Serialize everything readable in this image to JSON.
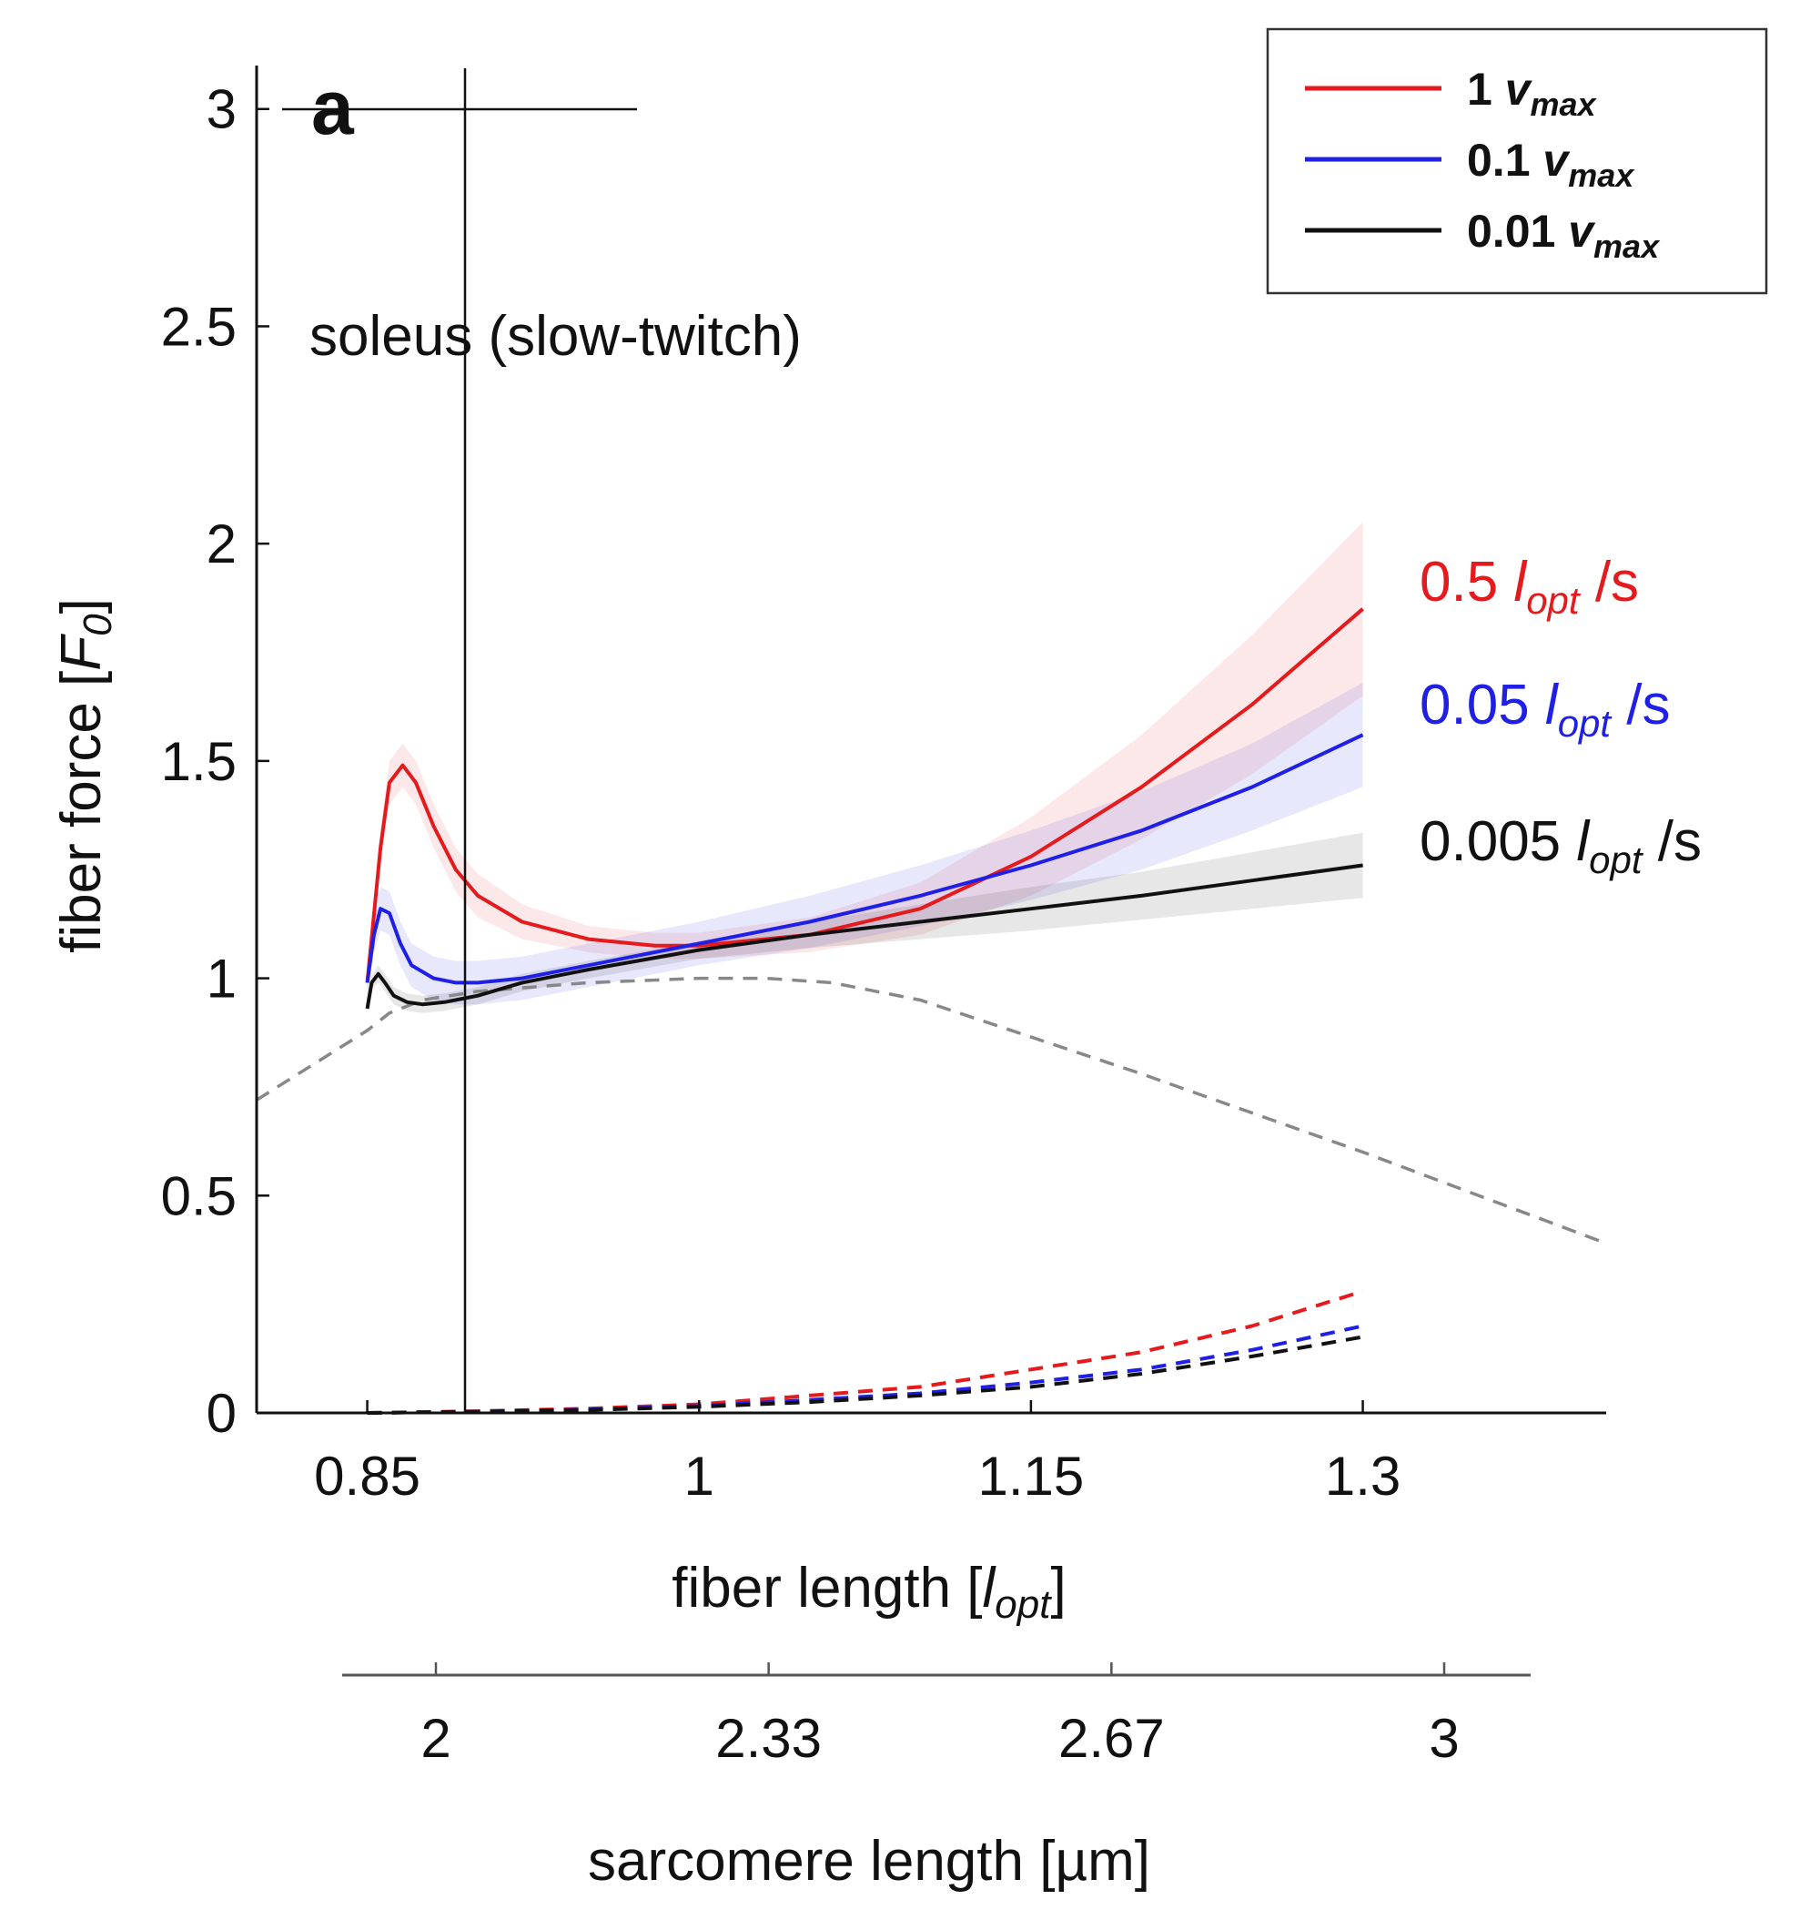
{
  "chart_data": {
    "type": "line",
    "panel_label": "a",
    "subtitle": "soleus (slow-twitch)",
    "xlabel": {
      "main": "fiber length [",
      "italic": "l",
      "sub": "opt",
      "end": "]"
    },
    "ylabel": {
      "main": "fiber force [",
      "italic": "F",
      "sub": "0",
      "end": "]"
    },
    "x_secondary_label": "sarcomere length [µm]",
    "xlim": [
      0.8,
      1.41
    ],
    "ylim": [
      0,
      3.1
    ],
    "xticks": [
      0.85,
      1,
      1.15,
      1.3
    ],
    "xtick_labels": [
      "0.85",
      "1",
      "1.15",
      "1.3"
    ],
    "yticks": [
      0,
      0.5,
      1,
      1.5,
      2,
      2.5,
      3
    ],
    "ytick_labels": [
      "0",
      "0.5",
      "1",
      "1.5",
      "2",
      "2.5",
      "3"
    ],
    "x_secondary_ticks": [
      "2",
      "2.33",
      "2.67",
      "3"
    ],
    "grid": false,
    "legend_position": "top-right",
    "legend": [
      {
        "prefix": "1 ",
        "italic": "v",
        "sub": "max",
        "color": "#e41a1c"
      },
      {
        "prefix": "0.1 ",
        "italic": "v",
        "sub": "max",
        "color": "#1f1fe6"
      },
      {
        "prefix": "0.01 ",
        "italic": "v",
        "sub": "max",
        "color": "#111111"
      }
    ],
    "series": [
      {
        "label": {
          "prefix": "0.5 ",
          "italic": "l",
          "sub": "opt",
          "suffix": " /s"
        },
        "color": "#e41a1c",
        "x": [
          0.85,
          0.856,
          0.86,
          0.866,
          0.872,
          0.88,
          0.89,
          0.9,
          0.92,
          0.95,
          0.98,
          1.0,
          1.05,
          1.1,
          1.15,
          1.2,
          1.25,
          1.3
        ],
        "y": [
          0.99,
          1.3,
          1.45,
          1.49,
          1.45,
          1.35,
          1.25,
          1.19,
          1.13,
          1.09,
          1.075,
          1.075,
          1.1,
          1.16,
          1.28,
          1.44,
          1.63,
          1.85
        ],
        "band_halfwidth": [
          0.02,
          0.04,
          0.05,
          0.05,
          0.05,
          0.05,
          0.05,
          0.05,
          0.04,
          0.03,
          0.03,
          0.03,
          0.04,
          0.06,
          0.09,
          0.12,
          0.16,
          0.2
        ],
        "passive_y": [
          0.0,
          0.004,
          0.01,
          0.02,
          0.04,
          0.06,
          0.1,
          0.14,
          0.2,
          0.28
        ]
      },
      {
        "label": {
          "prefix": "0.05 ",
          "italic": "l",
          "sub": "opt",
          "suffix": " /s"
        },
        "color": "#1f1fe6",
        "x": [
          0.85,
          0.853,
          0.856,
          0.86,
          0.865,
          0.87,
          0.88,
          0.89,
          0.9,
          0.92,
          0.95,
          1.0,
          1.05,
          1.1,
          1.15,
          1.2,
          1.25,
          1.3
        ],
        "y": [
          0.99,
          1.1,
          1.16,
          1.15,
          1.08,
          1.03,
          1.0,
          0.99,
          0.99,
          1.0,
          1.03,
          1.08,
          1.13,
          1.19,
          1.26,
          1.34,
          1.44,
          1.56
        ],
        "band_halfwidth": [
          0.03,
          0.04,
          0.05,
          0.05,
          0.05,
          0.05,
          0.05,
          0.05,
          0.05,
          0.05,
          0.05,
          0.05,
          0.06,
          0.07,
          0.08,
          0.09,
          0.1,
          0.12
        ],
        "passive_y": [
          0.0,
          0.003,
          0.008,
          0.016,
          0.03,
          0.045,
          0.07,
          0.1,
          0.145,
          0.2
        ]
      },
      {
        "label": {
          "prefix": "0.005 ",
          "italic": "l",
          "sub": "opt",
          "suffix": " /s"
        },
        "color": "#111111",
        "x": [
          0.85,
          0.852,
          0.855,
          0.858,
          0.862,
          0.868,
          0.875,
          0.885,
          0.9,
          0.92,
          0.95,
          1.0,
          1.05,
          1.1,
          1.15,
          1.2,
          1.25,
          1.3
        ],
        "y": [
          0.93,
          0.99,
          1.01,
          0.99,
          0.96,
          0.945,
          0.94,
          0.945,
          0.96,
          0.99,
          1.02,
          1.065,
          1.1,
          1.13,
          1.16,
          1.19,
          1.225,
          1.26
        ],
        "band_halfwidth": [
          0.01,
          0.015,
          0.02,
          0.02,
          0.02,
          0.02,
          0.02,
          0.02,
          0.02,
          0.02,
          0.02,
          0.02,
          0.03,
          0.04,
          0.05,
          0.055,
          0.065,
          0.075
        ],
        "passive_y": [
          0.0,
          0.003,
          0.007,
          0.014,
          0.025,
          0.04,
          0.06,
          0.09,
          0.13,
          0.175
        ]
      }
    ],
    "passive_x": [
      0.85,
      0.9,
      0.95,
      1.0,
      1.05,
      1.1,
      1.15,
      1.2,
      1.25,
      1.3
    ],
    "force_length_reference": {
      "color": "#888888",
      "x": [
        0.8,
        0.85,
        0.86,
        0.875,
        0.9,
        0.95,
        1.0,
        1.03,
        1.06,
        1.1,
        1.2,
        1.3,
        1.41
      ],
      "y": [
        0.72,
        0.88,
        0.92,
        0.95,
        0.97,
        0.99,
        1.0,
        1.0,
        0.99,
        0.95,
        0.78,
        0.6,
        0.39
      ]
    },
    "colors": {
      "red": "#e41a1c",
      "blue": "#1f1fe6",
      "black": "#111111",
      "reference": "#888888",
      "axis": "#111111"
    }
  }
}
